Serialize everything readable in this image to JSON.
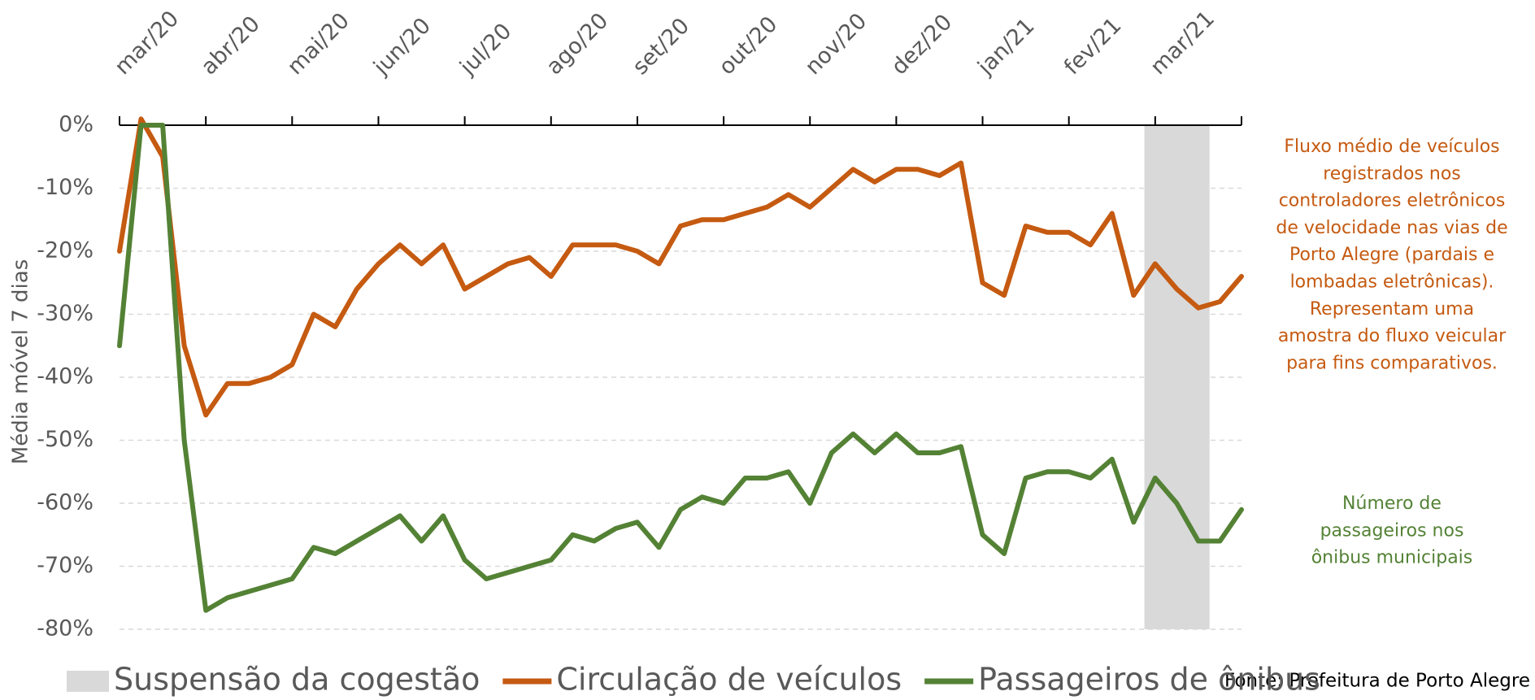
{
  "chart_data": {
    "type": "line",
    "y_axis_label": "Média móvel 7 dias",
    "categories": [
      "mar/20",
      null,
      null,
      null,
      "abr/20",
      null,
      null,
      null,
      "mai/20",
      null,
      null,
      null,
      "jun/20",
      null,
      null,
      null,
      "jul/20",
      null,
      null,
      null,
      "ago/20",
      null,
      null,
      null,
      "set/20",
      null,
      null,
      null,
      "out/20",
      null,
      null,
      null,
      "nov/20",
      null,
      null,
      null,
      "dez/20",
      null,
      null,
      null,
      "jan/21",
      null,
      null,
      null,
      "fev/21",
      null,
      null,
      null,
      "mar/21",
      null,
      null,
      null,
      null
    ],
    "series": [
      {
        "name": "Suspensão da cogestão",
        "type": "bar",
        "color": "#d9d9d9",
        "values": [
          null,
          null,
          null,
          null,
          null,
          null,
          null,
          null,
          null,
          null,
          null,
          null,
          null,
          null,
          null,
          null,
          null,
          null,
          null,
          null,
          null,
          null,
          null,
          null,
          null,
          null,
          null,
          null,
          null,
          null,
          null,
          null,
          null,
          null,
          null,
          null,
          null,
          null,
          null,
          null,
          null,
          null,
          null,
          null,
          null,
          null,
          null,
          null,
          -80,
          -80,
          -80,
          null,
          null
        ]
      },
      {
        "name": "Circulação de veículos",
        "type": "line",
        "color": "#c55a11",
        "values": [
          -20,
          1,
          -5,
          -35,
          -46,
          -41,
          -41,
          -40,
          -38,
          -30,
          -32,
          -26,
          -22,
          -19,
          -22,
          -19,
          -26,
          -24,
          -22,
          -21,
          -24,
          -19,
          -19,
          -19,
          -20,
          -22,
          -16,
          -15,
          -15,
          -14,
          -13,
          -11,
          -13,
          -10,
          -7,
          -9,
          -7,
          -7,
          -8,
          -6,
          -25,
          -27,
          -16,
          -17,
          -17,
          -19,
          -14,
          -27,
          -22,
          -26,
          -29,
          -28,
          -24
        ]
      },
      {
        "name": "Passageiros de ônibus",
        "type": "line",
        "color": "#548235",
        "values": [
          -35,
          0,
          0,
          -50,
          -77,
          -75,
          -74,
          -73,
          -72,
          -67,
          -68,
          -66,
          -64,
          -62,
          -66,
          -62,
          -69,
          -72,
          -71,
          -70,
          -69,
          -65,
          -66,
          -64,
          -63,
          -67,
          -61,
          -59,
          -60,
          -56,
          -56,
          -55,
          -60,
          -52,
          -49,
          -52,
          -49,
          -52,
          -52,
          -51,
          -65,
          -68,
          -56,
          -55,
          -55,
          -56,
          -53,
          -63,
          -56,
          -60,
          -66,
          -66,
          -61
        ]
      }
    ],
    "ylim": [
      -82,
      3
    ],
    "yticks": [
      {
        "value": 0,
        "label": "0%"
      },
      {
        "value": -10,
        "label": "-10%"
      },
      {
        "value": -20,
        "label": "-20%"
      },
      {
        "value": -30,
        "label": "-30%"
      },
      {
        "value": -40,
        "label": "-40%"
      },
      {
        "value": -50,
        "label": "-50%"
      },
      {
        "value": -60,
        "label": "-60%"
      },
      {
        "value": -70,
        "label": "-70%"
      },
      {
        "value": -80,
        "label": "-80%"
      }
    ],
    "grid": true,
    "annotations": [
      {
        "color": "#c55a11",
        "lines": [
          "Fluxo médio de veículos",
          "registrados nos",
          "controladores eletrônicos",
          "de velocidade nas vias de",
          "Porto Alegre (pardais e",
          "lombadas eletrônicas).",
          "Representam uma",
          "amostra do fluxo veicular",
          "para fins comparativos."
        ]
      },
      {
        "color": "#548235",
        "lines": [
          "Número de",
          "passageiros nos",
          "ônibus municipais"
        ]
      }
    ],
    "source": "Fonte: Prefeitura de Porto Alegre"
  }
}
